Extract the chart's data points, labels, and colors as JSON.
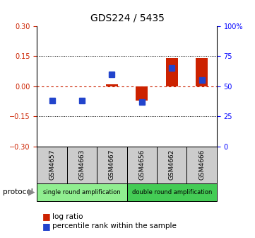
{
  "title": "GDS224 / 5435",
  "samples": [
    "GSM4657",
    "GSM4663",
    "GSM4667",
    "GSM4656",
    "GSM4662",
    "GSM4666"
  ],
  "log_ratio": [
    0.0,
    0.002,
    0.01,
    -0.07,
    0.14,
    0.14
  ],
  "percentile_rank": [
    38,
    38,
    60,
    37,
    65,
    55
  ],
  "groups": [
    {
      "label": "single round amplification",
      "start": 0,
      "end": 3,
      "color": "#90ee90"
    },
    {
      "label": "double round amplification",
      "start": 3,
      "end": 6,
      "color": "#44cc55"
    }
  ],
  "ylim_left": [
    -0.3,
    0.3
  ],
  "ylim_right": [
    0,
    100
  ],
  "yticks_left": [
    -0.3,
    -0.15,
    0,
    0.15,
    0.3
  ],
  "yticks_right": [
    0,
    25,
    50,
    75,
    100
  ],
  "ytick_labels_right": [
    "0",
    "25",
    "50",
    "75",
    "100%"
  ],
  "dotted_lines": [
    0.15,
    -0.15
  ],
  "bar_color_red": "#cc2200",
  "bar_color_blue": "#2244cc",
  "bar_width": 0.4,
  "square_size": 6,
  "dashed_line_color": "#cc2200",
  "title_fontsize": 10,
  "tick_fontsize": 7,
  "legend_fontsize": 7.5,
  "sample_box_color": "#cccccc",
  "protocol_arrow_color": "#888888"
}
